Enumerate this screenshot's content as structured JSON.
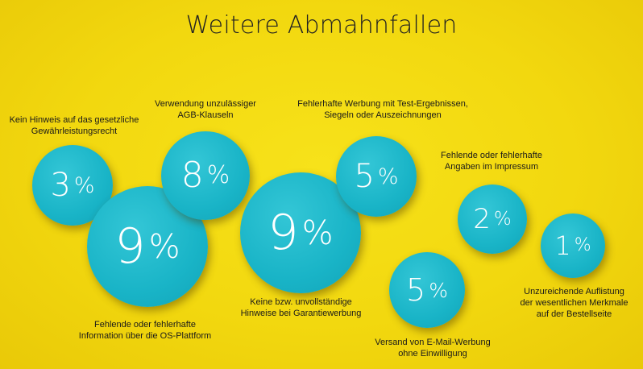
{
  "title": "Weitere Abmahnfallen",
  "chart_data": {
    "type": "bubble",
    "title": "Weitere Abmahnfallen",
    "unit": "%",
    "categories": [
      "Kein Hinweis auf das gesetzliche\nGewährleistungsrecht",
      "Fehlende oder fehlerhafte\nInformation über die OS-Plattform",
      "Verwendung unzulässiger\nAGB-Klauseln",
      "Keine bzw. unvollständige\nHinweise bei Garantiewerbung",
      "Fehlerhafte Werbung mit Test-Ergebnissen,\nSiegeln oder Auszeichnungen",
      "Versand von E-Mail-Werbung\nohne Einwilligung",
      "Fehlende oder fehlerhafte\nAngaben im Impressum",
      "Unzureichende Auflistung\nder wesentlichen Merkmale\nauf der Bestellseite"
    ],
    "values": [
      3,
      9,
      8,
      9,
      5,
      5,
      2,
      1
    ],
    "bubble_color": "#19b4c7"
  }
}
